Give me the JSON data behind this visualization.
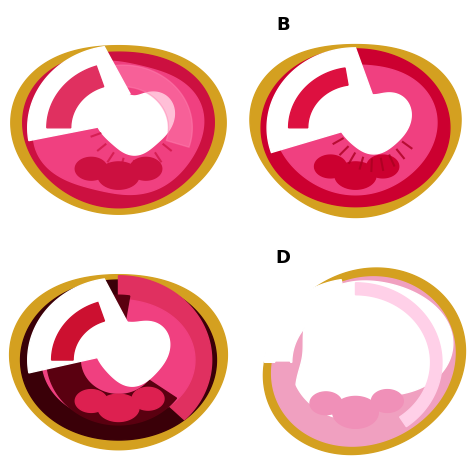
{
  "figure_size": [
    4.74,
    4.74
  ],
  "dpi": 100,
  "background_color": "#ffffff",
  "label_B": "B",
  "label_D": "D",
  "label_fontsize": 13,
  "label_fontweight": "bold"
}
